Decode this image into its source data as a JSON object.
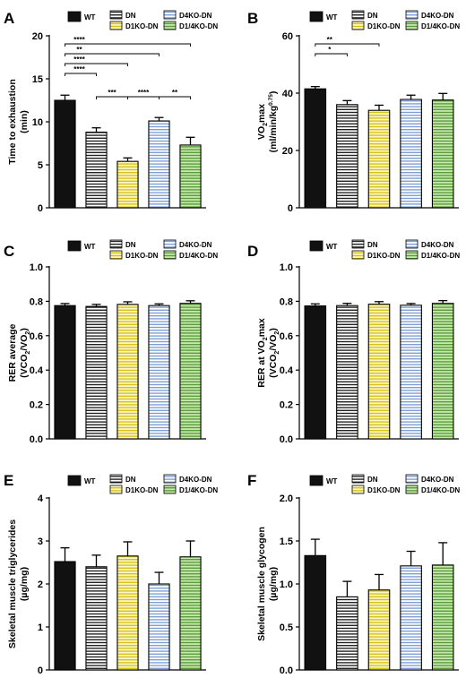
{
  "series_styles": [
    {
      "name": "WT",
      "fill": "#111111",
      "stripe": null
    },
    {
      "name": "DN",
      "fill": "#ffffff",
      "stripe": "#222222"
    },
    {
      "name": "D1KO-DN",
      "fill": "#fbf7c4",
      "stripe": "#d7c21d"
    },
    {
      "name": "D4KO-DN",
      "fill": "#ffffff",
      "stripe": "#7f9fd4"
    },
    {
      "name": "D1/4KO-DN",
      "fill": "#c6e9b0",
      "stripe": "#5c9c3a"
    }
  ],
  "chart_data": [
    {
      "panel": "A",
      "type": "bar",
      "categories": [
        "WT",
        "DN",
        "D1KO-DN",
        "D4KO-DN",
        "D1/4KO-DN"
      ],
      "values": [
        12.5,
        8.8,
        5.4,
        10.1,
        7.3
      ],
      "errors": [
        0.6,
        0.5,
        0.4,
        0.4,
        0.9
      ],
      "ylabel_lines": [
        [
          {
            "t": "Time to exhaustion"
          }
        ],
        [
          {
            "t": "(min)"
          }
        ]
      ],
      "ylim": [
        0,
        20
      ],
      "yticks": [
        0,
        5,
        10,
        15,
        20
      ],
      "legend": [
        "WT",
        "DN",
        "D4KO-DN",
        "D1KO-DN",
        "D1/4KO-DN"
      ],
      "significance": [
        {
          "from": 0,
          "to": 4,
          "label": "****"
        },
        {
          "from": 0,
          "to": 3,
          "label": "**"
        },
        {
          "from": 0,
          "to": 2,
          "label": "****"
        },
        {
          "from": 0,
          "to": 1,
          "label": "****"
        },
        {
          "from": 1,
          "to": 2,
          "label": "***"
        },
        {
          "from": 2,
          "to": 3,
          "label": "****"
        },
        {
          "from": 3,
          "to": 4,
          "label": "**"
        }
      ]
    },
    {
      "panel": "B",
      "type": "bar",
      "categories": [
        "WT",
        "DN",
        "D1KO-DN",
        "D4KO-DN",
        "D1/4KO-DN"
      ],
      "values": [
        41.5,
        36,
        34,
        37.8,
        37.6
      ],
      "errors": [
        0.8,
        1.4,
        1.8,
        1.5,
        2.3
      ],
      "ylabel_lines": [
        [
          {
            "t": "VO"
          },
          {
            "t": "2",
            "sub": true
          },
          {
            "t": "max"
          }
        ],
        [
          {
            "t": "(ml/min/kg"
          },
          {
            "t": "0.75",
            "sup": true
          },
          {
            "t": ")"
          }
        ]
      ],
      "ylim": [
        0,
        60
      ],
      "yticks": [
        0,
        20,
        40,
        60
      ],
      "legend": [
        "WT",
        "DN",
        "D4KO-DN",
        "D1KO-DN",
        "D1/4KO-DN"
      ],
      "significance": [
        {
          "from": 0,
          "to": 2,
          "label": "**"
        },
        {
          "from": 0,
          "to": 1,
          "label": "*"
        }
      ]
    },
    {
      "panel": "C",
      "type": "bar",
      "categories": [
        "WT",
        "DN",
        "D1KO-DN",
        "D4KO-DN",
        "D1/4KO-DN"
      ],
      "values": [
        0.775,
        0.77,
        0.782,
        0.775,
        0.788
      ],
      "errors": [
        0.012,
        0.012,
        0.015,
        0.01,
        0.015
      ],
      "ylabel_lines": [
        [
          {
            "t": "RER average"
          }
        ],
        [
          {
            "t": "(VCO"
          },
          {
            "t": "2",
            "sub": true
          },
          {
            "t": "/VO"
          },
          {
            "t": "2",
            "sub": true
          },
          {
            "t": ")"
          }
        ]
      ],
      "ylim": [
        0,
        1.0
      ],
      "yticks": [
        "0.0",
        "0.2",
        "0.4",
        "0.6",
        "0.8",
        "1.0"
      ],
      "legend": [
        "WT",
        "DN",
        "D4KO-DN",
        "D1KO-DN",
        "D1/4KO-DN"
      ],
      "significance": []
    },
    {
      "panel": "D",
      "type": "bar",
      "categories": [
        "WT",
        "DN",
        "D1KO-DN",
        "D4KO-DN",
        "D1/4KO-DN"
      ],
      "values": [
        0.773,
        0.775,
        0.783,
        0.777,
        0.788
      ],
      "errors": [
        0.012,
        0.013,
        0.015,
        0.01,
        0.016
      ],
      "ylabel_lines": [
        [
          {
            "t": "RER at VO"
          },
          {
            "t": "2",
            "sub": true
          },
          {
            "t": "max"
          }
        ],
        [
          {
            "t": "(VCO"
          },
          {
            "t": "2",
            "sub": true
          },
          {
            "t": "/VO"
          },
          {
            "t": "2",
            "sub": true
          },
          {
            "t": ")"
          }
        ]
      ],
      "ylim": [
        0,
        1.0
      ],
      "yticks": [
        "0.0",
        "0.2",
        "0.4",
        "0.6",
        "0.8",
        "1.0"
      ],
      "legend": [
        "WT",
        "DN",
        "D4KO-DN",
        "D1KO-DN",
        "D1/4KO-DN"
      ],
      "significance": []
    },
    {
      "panel": "E",
      "type": "bar",
      "categories": [
        "WT",
        "DN",
        "D1KO-DN",
        "D4KO-DN",
        "D1/4KO-DN"
      ],
      "values": [
        2.52,
        2.4,
        2.65,
        2.0,
        2.63
      ],
      "errors": [
        0.32,
        0.27,
        0.33,
        0.27,
        0.37
      ],
      "ylabel_lines": [
        [
          {
            "t": "Skeletal muscle triglycerides"
          }
        ],
        [
          {
            "t": "(µg/mg)"
          }
        ]
      ],
      "ylim": [
        0,
        4
      ],
      "yticks": [
        0,
        1,
        2,
        3,
        4
      ],
      "legend": [
        "WT",
        "DN",
        "D4KO-DN",
        "D1KO-DN",
        "D1/4KO-DN"
      ],
      "significance": []
    },
    {
      "panel": "F",
      "type": "bar",
      "categories": [
        "WT",
        "DN",
        "D1KO-DN",
        "D4KO-DN",
        "D1/4KO-DN"
      ],
      "values": [
        1.33,
        0.85,
        0.93,
        1.21,
        1.22
      ],
      "errors": [
        0.19,
        0.18,
        0.18,
        0.17,
        0.26
      ],
      "ylabel_lines": [
        [
          {
            "t": "Skeletal muscle glycogen"
          }
        ],
        [
          {
            "t": "(µg/mg)"
          }
        ]
      ],
      "ylim": [
        0,
        2.0
      ],
      "yticks": [
        "0.0",
        "0.5",
        "1.0",
        "1.5",
        "2.0"
      ],
      "legend": [
        "WT",
        "DN",
        "D4KO-DN",
        "D1KO-DN",
        "D1/4KO-DN"
      ],
      "significance": []
    }
  ]
}
